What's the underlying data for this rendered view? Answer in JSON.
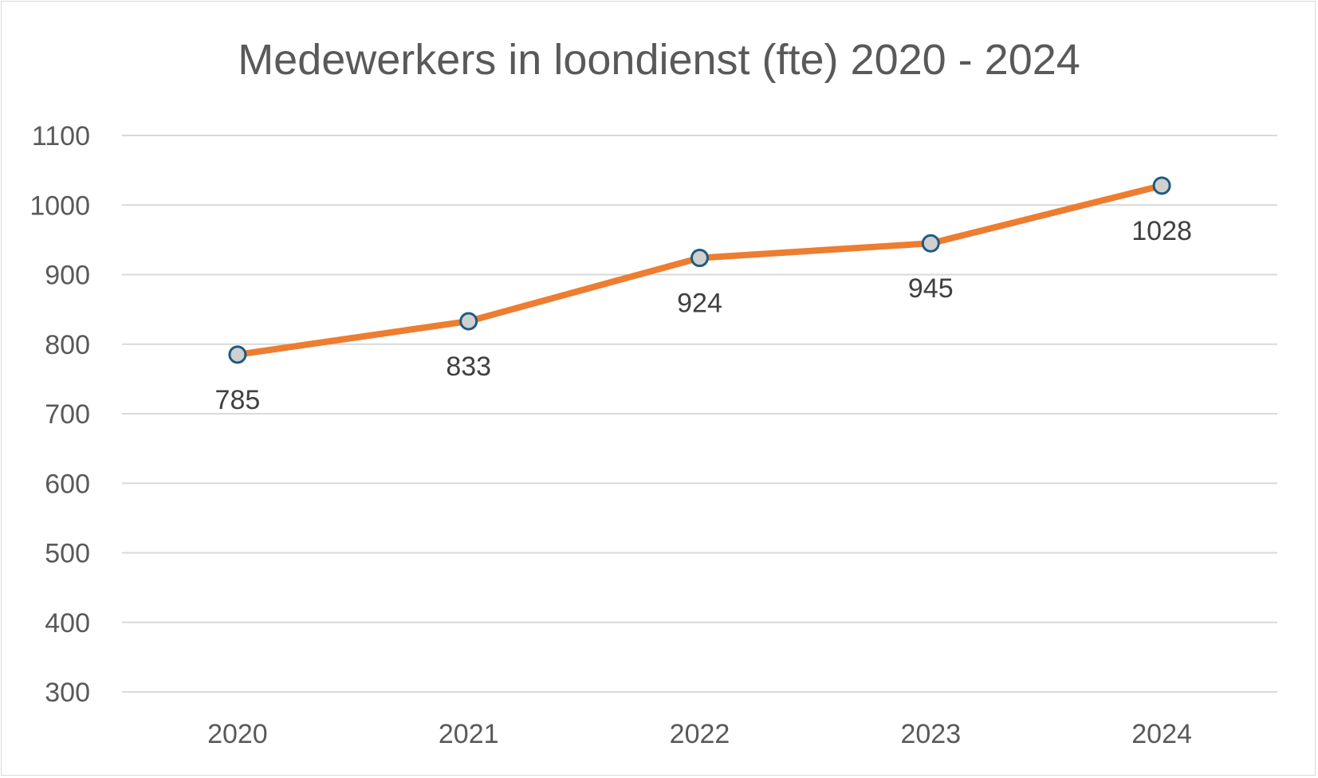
{
  "chart_data": {
    "type": "line",
    "title": "Medewerkers in loondienst (fte) 2020 - 2024",
    "categories": [
      "2020",
      "2021",
      "2022",
      "2023",
      "2024"
    ],
    "series": [
      {
        "values": [
          785,
          833,
          924,
          945,
          1028
        ],
        "color": "#ed7d31",
        "marker_fill": "#d0d0d0",
        "marker_stroke": "#1f5b80"
      }
    ],
    "data_labels": [
      "785",
      "833",
      "924",
      "945",
      "1028"
    ],
    "ylim": [
      300,
      1100
    ],
    "y_ticks": [
      "300",
      "400",
      "500",
      "600",
      "700",
      "800",
      "900",
      "1000",
      "1100"
    ],
    "grid": true,
    "grid_color": "#d9d9d9",
    "data_label_position": "below"
  }
}
